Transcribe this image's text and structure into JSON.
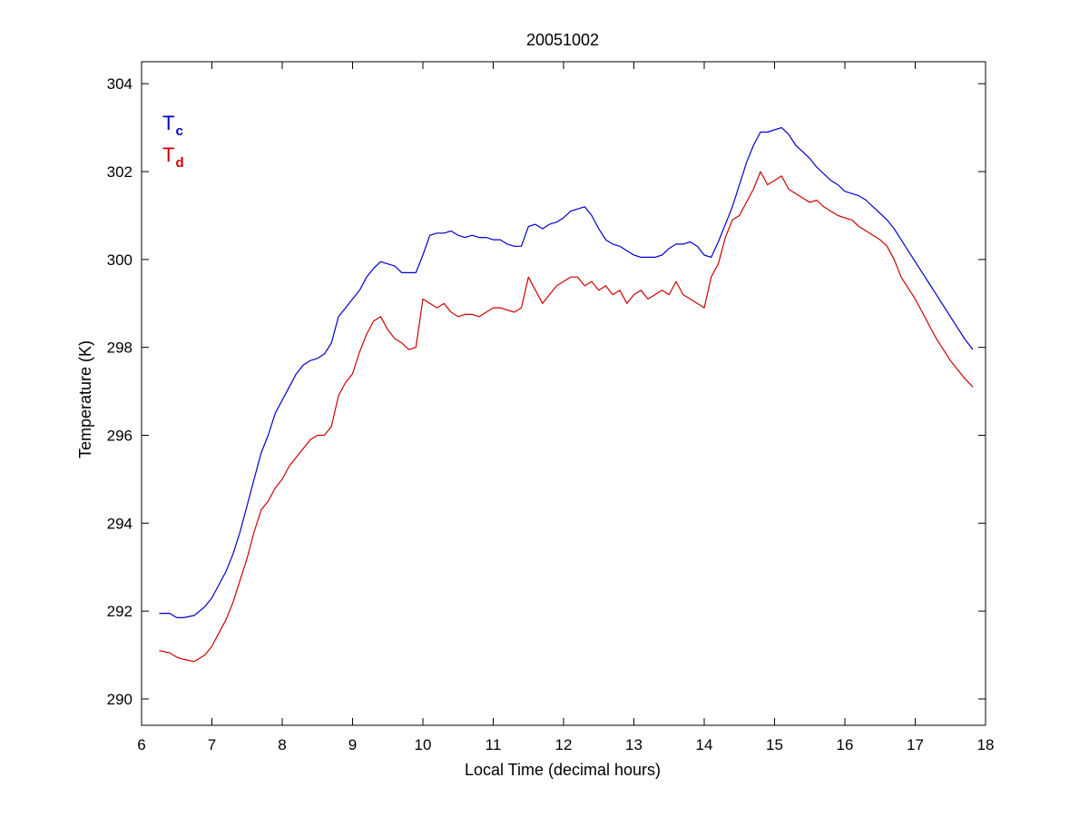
{
  "chart_data": {
    "type": "line",
    "title": "20051002",
    "xlabel": "Local Time (decimal hours)",
    "ylabel": "Temperature (K)",
    "xlim": [
      6,
      18
    ],
    "ylim": [
      289.4,
      304.5
    ],
    "xticks": [
      6,
      7,
      8,
      9,
      10,
      11,
      12,
      13,
      14,
      15,
      16,
      17,
      18
    ],
    "yticks": [
      290,
      292,
      294,
      296,
      298,
      300,
      302,
      304
    ],
    "grid": false,
    "legend_position": "top-left",
    "series": [
      {
        "name": "Tc",
        "legend_main": "T",
        "legend_sub": "c",
        "color": "#0000cc",
        "x": [
          6.25,
          6.4,
          6.5,
          6.6,
          6.75,
          6.9,
          7.0,
          7.1,
          7.2,
          7.3,
          7.4,
          7.5,
          7.6,
          7.7,
          7.8,
          7.9,
          8.0,
          8.1,
          8.2,
          8.3,
          8.4,
          8.5,
          8.6,
          8.7,
          8.8,
          8.9,
          9.0,
          9.1,
          9.2,
          9.3,
          9.4,
          9.5,
          9.6,
          9.7,
          9.8,
          9.9,
          10.0,
          10.1,
          10.2,
          10.3,
          10.4,
          10.5,
          10.6,
          10.7,
          10.8,
          10.9,
          11.0,
          11.1,
          11.2,
          11.3,
          11.4,
          11.5,
          11.6,
          11.7,
          11.8,
          11.9,
          12.0,
          12.1,
          12.2,
          12.3,
          12.4,
          12.5,
          12.6,
          12.7,
          12.8,
          12.9,
          13.0,
          13.1,
          13.2,
          13.3,
          13.4,
          13.5,
          13.6,
          13.7,
          13.8,
          13.9,
          14.0,
          14.1,
          14.2,
          14.3,
          14.4,
          14.5,
          14.6,
          14.7,
          14.8,
          14.9,
          15.0,
          15.1,
          15.2,
          15.3,
          15.4,
          15.5,
          15.6,
          15.7,
          15.8,
          15.9,
          16.0,
          16.1,
          16.2,
          16.3,
          16.4,
          16.5,
          16.6,
          16.7,
          16.8,
          16.9,
          17.0,
          17.1,
          17.2,
          17.3,
          17.4,
          17.5,
          17.6,
          17.7,
          17.82
        ],
        "y": [
          291.95,
          291.95,
          291.85,
          291.85,
          291.9,
          292.1,
          292.3,
          292.6,
          292.9,
          293.3,
          293.8,
          294.4,
          295.0,
          295.6,
          296.0,
          296.5,
          296.8,
          297.1,
          297.4,
          297.6,
          297.7,
          297.75,
          297.85,
          298.1,
          298.7,
          298.9,
          299.1,
          299.3,
          299.6,
          299.8,
          299.95,
          299.9,
          299.85,
          299.7,
          299.7,
          299.7,
          300.1,
          300.55,
          300.6,
          300.6,
          300.65,
          300.55,
          300.5,
          300.55,
          300.5,
          300.5,
          300.45,
          300.45,
          300.35,
          300.3,
          300.3,
          300.75,
          300.8,
          300.7,
          300.8,
          300.85,
          300.95,
          301.1,
          301.15,
          301.2,
          301.0,
          300.7,
          300.45,
          300.35,
          300.3,
          300.2,
          300.1,
          300.05,
          300.05,
          300.05,
          300.1,
          300.25,
          300.35,
          300.35,
          300.4,
          300.3,
          300.1,
          300.05,
          300.4,
          300.8,
          301.2,
          301.7,
          302.2,
          302.6,
          302.9,
          302.9,
          302.95,
          303.0,
          302.85,
          302.6,
          302.45,
          302.3,
          302.1,
          301.95,
          301.8,
          301.7,
          301.55,
          301.5,
          301.45,
          301.35,
          301.2,
          301.05,
          300.9,
          300.7,
          300.45,
          300.2,
          299.95,
          299.7,
          299.45,
          299.2,
          298.95,
          298.7,
          298.45,
          298.2,
          297.95
        ]
      },
      {
        "name": "Td",
        "legend_main": "T",
        "legend_sub": "d",
        "color": "#cc0000",
        "x": [
          6.25,
          6.4,
          6.5,
          6.6,
          6.75,
          6.9,
          7.0,
          7.1,
          7.2,
          7.3,
          7.4,
          7.5,
          7.6,
          7.7,
          7.8,
          7.9,
          8.0,
          8.1,
          8.2,
          8.3,
          8.4,
          8.5,
          8.6,
          8.7,
          8.8,
          8.9,
          9.0,
          9.1,
          9.2,
          9.3,
          9.4,
          9.5,
          9.6,
          9.7,
          9.8,
          9.9,
          10.0,
          10.1,
          10.2,
          10.3,
          10.4,
          10.5,
          10.6,
          10.7,
          10.8,
          10.9,
          11.0,
          11.1,
          11.2,
          11.3,
          11.4,
          11.5,
          11.6,
          11.7,
          11.8,
          11.9,
          12.0,
          12.1,
          12.2,
          12.3,
          12.4,
          12.5,
          12.6,
          12.7,
          12.8,
          12.9,
          13.0,
          13.1,
          13.2,
          13.3,
          13.4,
          13.5,
          13.6,
          13.7,
          13.8,
          13.9,
          14.0,
          14.1,
          14.2,
          14.3,
          14.4,
          14.5,
          14.6,
          14.7,
          14.8,
          14.9,
          15.0,
          15.1,
          15.2,
          15.3,
          15.4,
          15.5,
          15.6,
          15.7,
          15.8,
          15.9,
          16.0,
          16.1,
          16.2,
          16.3,
          16.4,
          16.5,
          16.6,
          16.7,
          16.8,
          16.9,
          17.0,
          17.1,
          17.2,
          17.3,
          17.4,
          17.5,
          17.6,
          17.7,
          17.82
        ],
        "y": [
          291.1,
          291.05,
          290.95,
          290.9,
          290.85,
          291.0,
          291.2,
          291.5,
          291.8,
          292.2,
          292.7,
          293.2,
          293.8,
          294.3,
          294.5,
          294.8,
          295.0,
          295.3,
          295.5,
          295.7,
          295.9,
          296.0,
          296.0,
          296.2,
          296.9,
          297.2,
          297.4,
          297.9,
          298.3,
          298.6,
          298.7,
          298.4,
          298.2,
          298.1,
          297.95,
          298.0,
          299.1,
          299.0,
          298.9,
          299.0,
          298.8,
          298.7,
          298.75,
          298.75,
          298.7,
          298.8,
          298.9,
          298.9,
          298.85,
          298.8,
          298.9,
          299.6,
          299.3,
          299.0,
          299.2,
          299.4,
          299.5,
          299.6,
          299.6,
          299.4,
          299.5,
          299.3,
          299.4,
          299.2,
          299.3,
          299.0,
          299.2,
          299.3,
          299.1,
          299.2,
          299.3,
          299.2,
          299.5,
          299.2,
          299.1,
          299.0,
          298.9,
          299.6,
          299.9,
          300.5,
          300.9,
          301.0,
          301.3,
          301.6,
          302.0,
          301.7,
          301.8,
          301.9,
          301.6,
          301.5,
          301.4,
          301.3,
          301.35,
          301.2,
          301.1,
          301.0,
          300.95,
          300.9,
          300.75,
          300.65,
          300.55,
          300.45,
          300.3,
          300.0,
          299.6,
          299.35,
          299.1,
          298.8,
          298.5,
          298.2,
          297.95,
          297.7,
          297.5,
          297.3,
          297.1
        ]
      }
    ]
  }
}
